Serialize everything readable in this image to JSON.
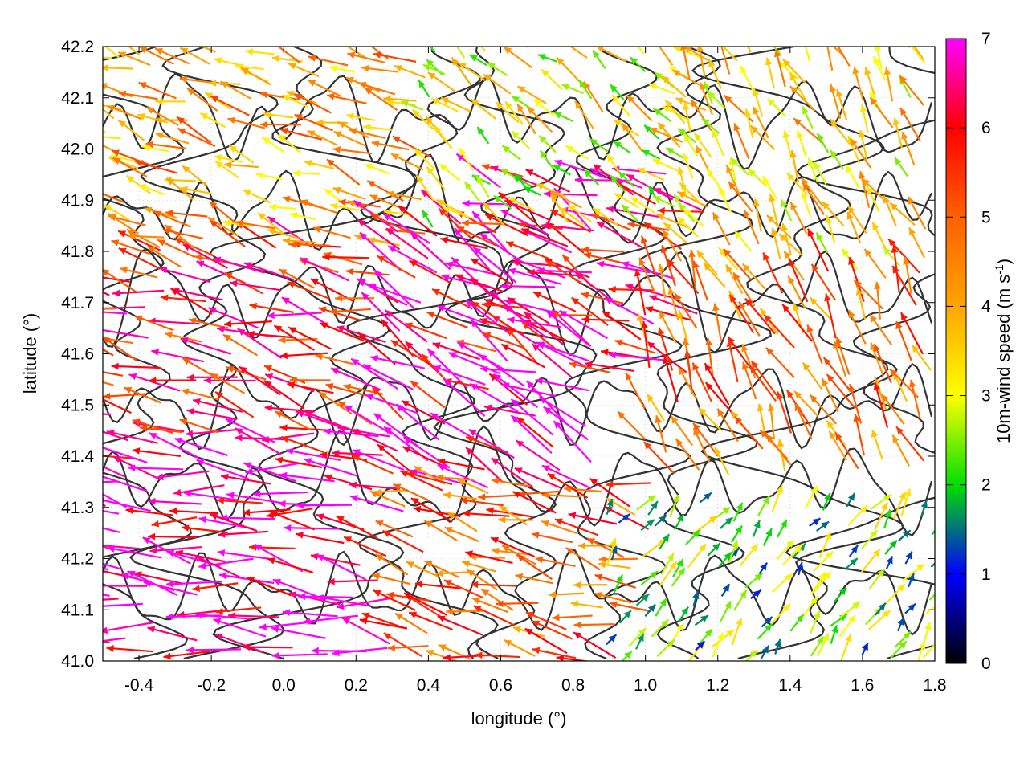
{
  "chart_data": {
    "type": "vector-field",
    "title": "",
    "xlabel": "longitude (°)",
    "ylabel": "latitude (°)",
    "xlim": [
      -0.5,
      1.8
    ],
    "ylim": [
      41.0,
      42.2
    ],
    "x_ticks": [
      -0.4,
      -0.2,
      0.0,
      0.2,
      0.4,
      0.6,
      0.8,
      1.0,
      1.2,
      1.4,
      1.6,
      1.8
    ],
    "x_tick_labels": [
      "-0.4",
      "-0.2",
      "0.0",
      "0.2",
      "0.4",
      "0.6",
      "0.8",
      "1.0",
      "1.2",
      "1.4",
      "1.6",
      "1.8"
    ],
    "y_ticks": [
      41.0,
      41.1,
      41.2,
      41.3,
      41.4,
      41.5,
      41.6,
      41.7,
      41.8,
      41.9,
      42.0,
      42.1,
      42.2
    ],
    "y_tick_labels": [
      "41.0",
      "41.1",
      "41.2",
      "41.3",
      "41.4",
      "41.5",
      "41.6",
      "41.7",
      "41.8",
      "41.9",
      "42.0",
      "42.1",
      "42.2"
    ],
    "grid": true,
    "colorbar": {
      "label_main": "10m-wind speed (m s",
      "label_sup": "-1",
      "label_close": ")",
      "range": [
        0,
        7
      ],
      "ticks": [
        0,
        1,
        2,
        3,
        4,
        5,
        6,
        7
      ],
      "tick_labels": [
        "0",
        "1",
        "2",
        "3",
        "4",
        "5",
        "6",
        "7"
      ],
      "colors": [
        {
          "value": 0,
          "color": "#000000"
        },
        {
          "value": 1,
          "color": "#0000ff"
        },
        {
          "value": 2,
          "color": "#00e000"
        },
        {
          "value": 3,
          "color": "#ffff00"
        },
        {
          "value": 4,
          "color": "#ffa500"
        },
        {
          "value": 5,
          "color": "#ff6000"
        },
        {
          "value": 6,
          "color": "#ff0000"
        },
        {
          "value": 7,
          "color": "#ff00ff"
        }
      ]
    },
    "field_regions": [
      {
        "lon": [
          -0.5,
          0.35
        ],
        "lat": [
          41.0,
          41.45
        ],
        "speed": 6.8,
        "dir_deg": 170,
        "density": 0.45
      },
      {
        "lon": [
          -0.5,
          0.3
        ],
        "lat": [
          41.45,
          41.8
        ],
        "speed": 5.8,
        "dir_deg": 165,
        "density": 0.45
      },
      {
        "lon": [
          -0.5,
          0.4
        ],
        "lat": [
          41.8,
          42.2
        ],
        "speed": 4.2,
        "dir_deg": 160,
        "density": 0.5
      },
      {
        "lon": [
          0.3,
          0.85
        ],
        "lat": [
          41.35,
          41.85
        ],
        "speed": 6.5,
        "dir_deg": 150,
        "density": 0.45
      },
      {
        "lon": [
          0.6,
          1.15
        ],
        "lat": [
          41.55,
          41.95
        ],
        "speed": 6.2,
        "dir_deg": 160,
        "density": 0.45
      },
      {
        "lon": [
          0.35,
          1.0
        ],
        "lat": [
          41.0,
          41.35
        ],
        "speed": 5.0,
        "dir_deg": 165,
        "density": 0.5
      },
      {
        "lon": [
          0.4,
          1.2
        ],
        "lat": [
          41.85,
          42.2
        ],
        "speed": 3.2,
        "dir_deg": 140,
        "density": 0.5
      },
      {
        "lon": [
          1.1,
          1.8
        ],
        "lat": [
          41.75,
          42.2
        ],
        "speed": 3.6,
        "dir_deg": 120,
        "density": 0.5
      },
      {
        "lon": [
          1.0,
          1.8
        ],
        "lat": [
          41.35,
          41.75
        ],
        "speed": 4.8,
        "dir_deg": 115,
        "density": 0.45
      },
      {
        "lon": [
          0.9,
          1.8
        ],
        "lat": [
          41.0,
          41.3
        ],
        "speed": 2.3,
        "dir_deg": 55,
        "density": 0.55
      }
    ]
  }
}
